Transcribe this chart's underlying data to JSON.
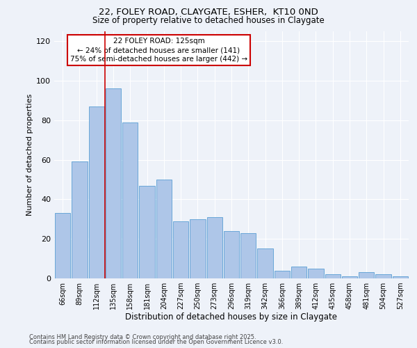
{
  "title1": "22, FOLEY ROAD, CLAYGATE, ESHER,  KT10 0ND",
  "title2": "Size of property relative to detached houses in Claygate",
  "xlabel": "Distribution of detached houses by size in Claygate",
  "ylabel": "Number of detached properties",
  "categories": [
    "66sqm",
    "89sqm",
    "112sqm",
    "135sqm",
    "158sqm",
    "181sqm",
    "204sqm",
    "227sqm",
    "250sqm",
    "273sqm",
    "296sqm",
    "319sqm",
    "342sqm",
    "366sqm",
    "389sqm",
    "412sqm",
    "435sqm",
    "458sqm",
    "481sqm",
    "504sqm",
    "527sqm"
  ],
  "values": [
    33,
    59,
    87,
    96,
    79,
    47,
    50,
    29,
    30,
    31,
    24,
    23,
    15,
    4,
    6,
    5,
    2,
    1,
    3,
    2,
    1
  ],
  "bar_color": "#aec6e8",
  "bar_edge_color": "#5a9fd4",
  "vline_x_index": 2.5,
  "marker_label": "22 FOLEY ROAD: 125sqm",
  "annotation_line1": "← 24% of detached houses are smaller (141)",
  "annotation_line2": "75% of semi-detached houses are larger (442) →",
  "annotation_box_color": "#ffffff",
  "annotation_box_edge": "#cc0000",
  "vline_color": "#cc0000",
  "ylim": [
    0,
    125
  ],
  "yticks": [
    0,
    20,
    40,
    60,
    80,
    100,
    120
  ],
  "background_color": "#eef2f9",
  "grid_color": "#ffffff",
  "footer1": "Contains HM Land Registry data © Crown copyright and database right 2025.",
  "footer2": "Contains public sector information licensed under the Open Government Licence v3.0."
}
